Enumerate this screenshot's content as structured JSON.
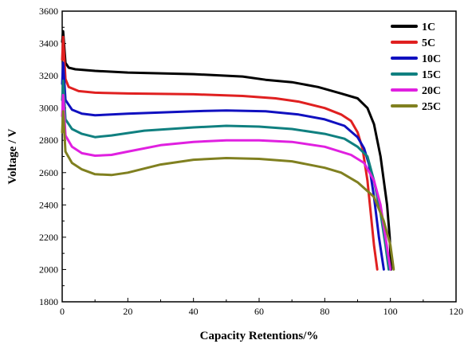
{
  "chart_data": {
    "type": "line",
    "title": "",
    "xlabel": "Capacity Retentions/%",
    "ylabel": "Voltage / V",
    "xlim": [
      0,
      120
    ],
    "ylim": [
      1800,
      3600
    ],
    "xticks": [
      0,
      20,
      40,
      60,
      80,
      100,
      120
    ],
    "yticks": [
      1800,
      2000,
      2200,
      2400,
      2600,
      2800,
      3000,
      3200,
      3400,
      3600
    ],
    "grid": false,
    "legend_position": "top-right",
    "series": [
      {
        "name": "1C",
        "color": "#000000",
        "x": [
          0,
          0.3,
          1,
          2,
          4,
          10,
          20,
          40,
          55,
          62,
          70,
          78,
          85,
          90,
          93,
          95,
          97,
          98,
          99,
          99.8,
          100.2
        ],
        "y": [
          3410,
          3475,
          3280,
          3250,
          3240,
          3230,
          3220,
          3210,
          3195,
          3175,
          3160,
          3130,
          3090,
          3060,
          3000,
          2900,
          2700,
          2550,
          2400,
          2200,
          2000
        ]
      },
      {
        "name": "5C",
        "color": "#e02020",
        "x": [
          0,
          0.3,
          1,
          2,
          5,
          10,
          20,
          40,
          55,
          65,
          72,
          80,
          85,
          88,
          90,
          91.5,
          93,
          94,
          95,
          96
        ],
        "y": [
          3300,
          3440,
          3180,
          3130,
          3105,
          3095,
          3090,
          3085,
          3075,
          3060,
          3040,
          3000,
          2960,
          2920,
          2850,
          2750,
          2550,
          2350,
          2150,
          2000
        ]
      },
      {
        "name": "10C",
        "color": "#1010c0",
        "x": [
          0,
          0.3,
          1,
          3,
          6,
          10,
          20,
          40,
          50,
          62,
          72,
          80,
          86,
          90,
          92,
          93.5,
          95,
          96.5,
          98
        ],
        "y": [
          3150,
          3280,
          3050,
          2990,
          2965,
          2955,
          2965,
          2980,
          2985,
          2980,
          2960,
          2930,
          2890,
          2820,
          2750,
          2650,
          2450,
          2200,
          2000
        ]
      },
      {
        "name": "15C",
        "color": "#108080",
        "x": [
          0,
          0.3,
          1,
          3,
          6,
          10,
          15,
          25,
          40,
          50,
          60,
          70,
          80,
          86,
          90,
          93,
          95,
          97,
          98.5,
          99.5
        ],
        "y": [
          3050,
          3170,
          2930,
          2870,
          2840,
          2820,
          2830,
          2860,
          2880,
          2890,
          2885,
          2870,
          2840,
          2810,
          2760,
          2700,
          2550,
          2350,
          2150,
          2000
        ]
      },
      {
        "name": "20C",
        "color": "#e020e0",
        "x": [
          0,
          0.3,
          1,
          3,
          6,
          10,
          15,
          20,
          30,
          40,
          50,
          60,
          70,
          80,
          88,
          92,
          95,
          97,
          98.5,
          100
        ],
        "y": [
          2950,
          3080,
          2830,
          2760,
          2720,
          2705,
          2710,
          2730,
          2770,
          2790,
          2800,
          2800,
          2790,
          2760,
          2710,
          2660,
          2550,
          2400,
          2200,
          2000
        ]
      },
      {
        "name": "25C",
        "color": "#808020",
        "x": [
          0,
          0.3,
          1,
          3,
          6,
          10,
          15,
          20,
          30,
          40,
          50,
          60,
          70,
          80,
          85,
          90,
          95,
          98,
          100,
          101
        ],
        "y": [
          2850,
          2980,
          2730,
          2660,
          2620,
          2590,
          2585,
          2600,
          2650,
          2680,
          2690,
          2685,
          2670,
          2630,
          2600,
          2540,
          2450,
          2300,
          2150,
          2000
        ]
      }
    ]
  }
}
